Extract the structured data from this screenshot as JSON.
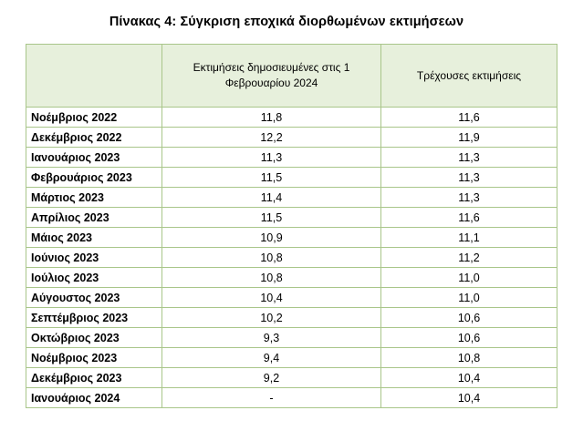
{
  "title": "Πίνακας 4: Σύγκριση εποχικά διορθωμένων εκτιμήσεων",
  "table": {
    "headers": [
      "",
      "Εκτιμήσεις δημοσιευμένες στις 1 Φεβρουαρίου 2024",
      "Τρέχουσες εκτιμήσεις"
    ],
    "rows": [
      {
        "month": "Νοέμβριος 2022",
        "published": "11,8",
        "current": "11,6"
      },
      {
        "month": "Δεκέμβριος 2022",
        "published": "12,2",
        "current": "11,9"
      },
      {
        "month": "Ιανουάριος 2023",
        "published": "11,3",
        "current": "11,3"
      },
      {
        "month": "Φεβρουάριος 2023",
        "published": "11,5",
        "current": "11,3"
      },
      {
        "month": "Μάρτιος 2023",
        "published": "11,4",
        "current": "11,3"
      },
      {
        "month": "Απρίλιος 2023",
        "published": "11,5",
        "current": "11,6"
      },
      {
        "month": "Μάιος 2023",
        "published": "10,9",
        "current": "11,1"
      },
      {
        "month": "Ιούνιος 2023",
        "published": "10,8",
        "current": "11,2"
      },
      {
        "month": "Ιούλιος 2023",
        "published": "10,8",
        "current": "11,0"
      },
      {
        "month": "Αύγουστος 2023",
        "published": "10,4",
        "current": "11,0"
      },
      {
        "month": "Σεπτέμβριος 2023",
        "published": "10,2",
        "current": "10,6"
      },
      {
        "month": "Οκτώβριος 2023",
        "published": "9,3",
        "current": "10,6"
      },
      {
        "month": "Νοέμβριος 2023",
        "published": "9,4",
        "current": "10,8"
      },
      {
        "month": "Δεκέμβριος 2023",
        "published": "9,2",
        "current": "10,4"
      },
      {
        "month": "Ιανουάριος 2024",
        "published": "-",
        "current": "10,4"
      }
    ]
  }
}
